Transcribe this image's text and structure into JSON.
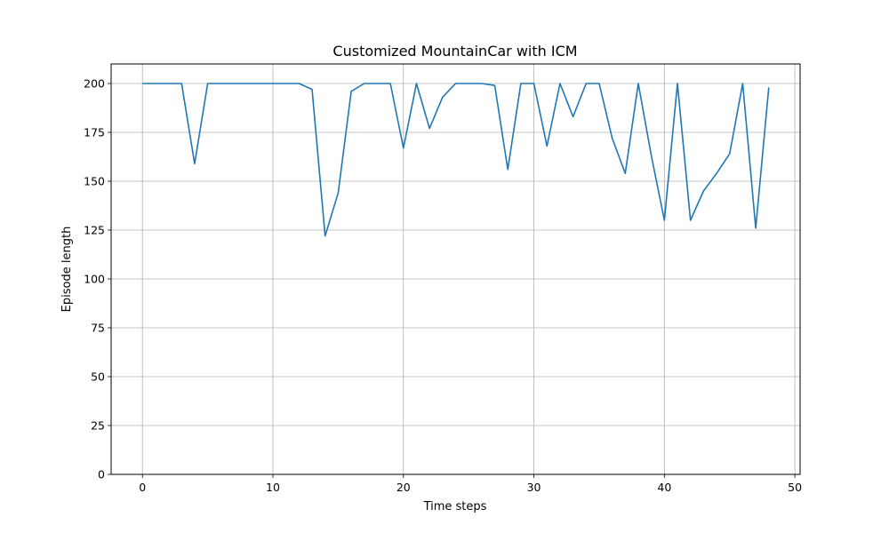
{
  "chart_data": {
    "type": "line",
    "title": "Customized MountainCar with ICM",
    "xlabel": "Time steps",
    "ylabel": "Episode length",
    "xlim": [
      -2.4,
      50.4
    ],
    "ylim": [
      0,
      210
    ],
    "xticks": [
      0,
      10,
      20,
      30,
      40,
      50
    ],
    "yticks": [
      0,
      25,
      50,
      75,
      100,
      125,
      150,
      175,
      200
    ],
    "grid": true,
    "line_color": "#1f77b4",
    "series": [
      {
        "x": [
          0,
          1,
          2,
          3,
          4,
          5,
          6,
          7,
          8,
          9,
          10,
          11,
          12,
          13,
          14,
          15,
          16,
          17,
          18,
          19,
          20,
          21,
          22,
          23,
          24,
          25,
          26,
          27,
          28,
          29,
          30,
          31,
          32,
          33,
          34,
          35,
          36,
          37,
          38,
          39,
          40,
          41,
          42,
          43,
          44,
          45,
          46,
          47,
          48
        ],
        "values": [
          200,
          200,
          200,
          200,
          159,
          200,
          200,
          200,
          200,
          200,
          200,
          200,
          200,
          197,
          122,
          144,
          196,
          200,
          200,
          200,
          167,
          200,
          177,
          193,
          200,
          200,
          200,
          199,
          156,
          200,
          200,
          168,
          200,
          183,
          200,
          200,
          172,
          154,
          200,
          163,
          130,
          200,
          130,
          145,
          154,
          164,
          200,
          126,
          198
        ]
      }
    ]
  }
}
